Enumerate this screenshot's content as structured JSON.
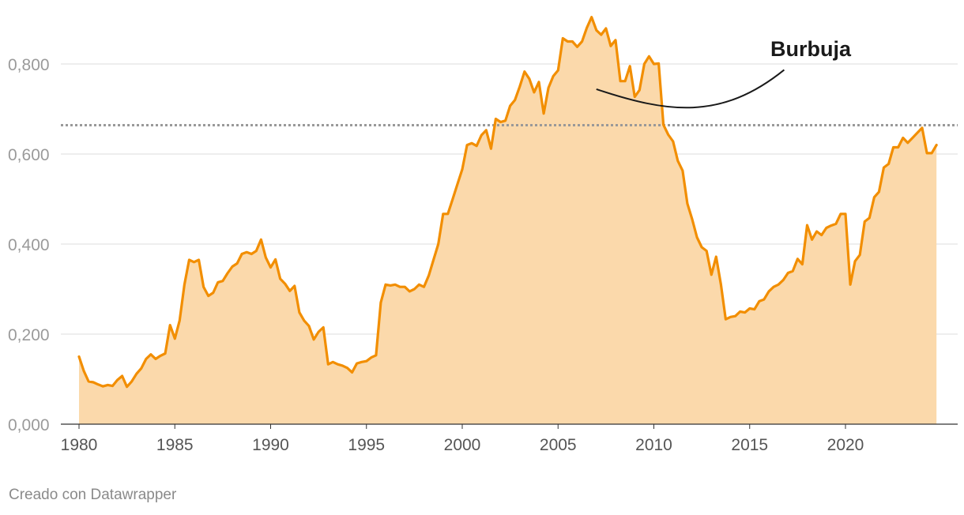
{
  "chart_data": {
    "type": "area",
    "title": "",
    "xlabel": "",
    "ylabel": "",
    "xlim": [
      1979.0,
      2025.9
    ],
    "ylim": [
      0,
      0.9
    ],
    "yticks": [
      0,
      0.2,
      0.4,
      0.6,
      0.8
    ],
    "ytick_labels": [
      "0,000",
      "0,200",
      "0,400",
      "0,600",
      "0,800"
    ],
    "xticks": [
      1980,
      1985,
      1990,
      1995,
      2000,
      2005,
      2010,
      2015,
      2020
    ],
    "xtick_labels": [
      "1980",
      "1985",
      "1990",
      "1995",
      "2000",
      "2005",
      "2010",
      "2015",
      "2020"
    ],
    "grid": true,
    "legend": "none",
    "colors": {
      "line": "#f28e00",
      "fill": "#fbd9ab",
      "reference": "#999999",
      "grid": "#dddddd"
    },
    "reference_line": {
      "y": 0.664,
      "style": "dotted"
    },
    "annotation": {
      "text": "Burbuja",
      "start": [
        2007.0,
        0.744
      ],
      "end": [
        2016.8,
        0.787
      ]
    },
    "series": [
      {
        "name": "",
        "x": [
          1980.0,
          1980.25,
          1980.5,
          1980.75,
          1981.0,
          1981.25,
          1981.5,
          1981.75,
          1982.0,
          1982.25,
          1982.5,
          1982.75,
          1983.0,
          1983.25,
          1983.5,
          1983.75,
          1984.0,
          1984.25,
          1984.5,
          1984.75,
          1985.0,
          1985.25,
          1985.5,
          1985.75,
          1986.0,
          1986.25,
          1986.5,
          1986.75,
          1987.0,
          1987.25,
          1987.5,
          1987.75,
          1988.0,
          1988.25,
          1988.5,
          1988.75,
          1989.0,
          1989.25,
          1989.5,
          1989.75,
          1990.0,
          1990.25,
          1990.5,
          1990.75,
          1991.0,
          1991.25,
          1991.5,
          1991.75,
          1992.0,
          1992.25,
          1992.5,
          1992.75,
          1993.0,
          1993.25,
          1993.5,
          1993.75,
          1994.0,
          1994.25,
          1994.5,
          1994.75,
          1995.0,
          1995.25,
          1995.5,
          1995.75,
          1996.0,
          1996.25,
          1996.5,
          1996.75,
          1997.0,
          1997.25,
          1997.5,
          1997.75,
          1998.0,
          1998.25,
          1998.5,
          1998.75,
          1999.0,
          1999.25,
          1999.5,
          1999.75,
          2000.0,
          2000.25,
          2000.5,
          2000.75,
          2001.0,
          2001.25,
          2001.5,
          2001.75,
          2002.0,
          2002.25,
          2002.5,
          2002.75,
          2003.0,
          2003.25,
          2003.5,
          2003.75,
          2004.0,
          2004.25,
          2004.5,
          2004.75,
          2005.0,
          2005.25,
          2005.5,
          2005.75,
          2006.0,
          2006.25,
          2006.5,
          2006.75,
          2007.0,
          2007.25,
          2007.5,
          2007.75,
          2008.0,
          2008.25,
          2008.5,
          2008.75,
          2009.0,
          2009.25,
          2009.5,
          2009.75,
          2010.0,
          2010.25,
          2010.5,
          2010.75,
          2011.0,
          2011.25,
          2011.5,
          2011.75,
          2012.0,
          2012.25,
          2012.5,
          2012.75,
          2013.0,
          2013.25,
          2013.5,
          2013.75,
          2014.0,
          2014.25,
          2014.5,
          2014.75,
          2015.0,
          2015.25,
          2015.5,
          2015.75,
          2016.0,
          2016.25,
          2016.5,
          2016.75,
          2017.0,
          2017.25,
          2017.5,
          2017.75,
          2018.0,
          2018.25,
          2018.5,
          2018.75,
          2019.0,
          2019.25,
          2019.5,
          2019.75,
          2020.0,
          2020.25,
          2020.5,
          2020.75,
          2021.0,
          2021.25,
          2021.5,
          2021.75,
          2022.0,
          2022.25,
          2022.5,
          2022.75,
          2023.0,
          2023.25,
          2023.5,
          2023.75,
          2024.0,
          2024.25,
          2024.5,
          2024.75
        ],
        "values": [
          0.15,
          0.118,
          0.095,
          0.093,
          0.088,
          0.084,
          0.087,
          0.085,
          0.098,
          0.107,
          0.083,
          0.095,
          0.112,
          0.124,
          0.145,
          0.155,
          0.145,
          0.152,
          0.157,
          0.22,
          0.19,
          0.23,
          0.31,
          0.365,
          0.36,
          0.365,
          0.305,
          0.285,
          0.292,
          0.315,
          0.318,
          0.335,
          0.35,
          0.357,
          0.378,
          0.382,
          0.378,
          0.385,
          0.41,
          0.37,
          0.348,
          0.366,
          0.323,
          0.312,
          0.296,
          0.307,
          0.248,
          0.23,
          0.218,
          0.188,
          0.205,
          0.215,
          0.133,
          0.138,
          0.133,
          0.13,
          0.125,
          0.115,
          0.135,
          0.138,
          0.14,
          0.148,
          0.153,
          0.27,
          0.31,
          0.308,
          0.31,
          0.305,
          0.305,
          0.295,
          0.3,
          0.31,
          0.305,
          0.33,
          0.365,
          0.4,
          0.467,
          0.467,
          0.5,
          0.533,
          0.566,
          0.62,
          0.624,
          0.618,
          0.642,
          0.653,
          0.612,
          0.678,
          0.671,
          0.674,
          0.707,
          0.72,
          0.75,
          0.783,
          0.767,
          0.737,
          0.76,
          0.69,
          0.747,
          0.773,
          0.786,
          0.857,
          0.85,
          0.85,
          0.838,
          0.85,
          0.88,
          0.904,
          0.875,
          0.865,
          0.879,
          0.84,
          0.853,
          0.762,
          0.762,
          0.795,
          0.727,
          0.742,
          0.8,
          0.817,
          0.8,
          0.801,
          0.665,
          0.643,
          0.628,
          0.585,
          0.563,
          0.49,
          0.455,
          0.415,
          0.393,
          0.385,
          0.332,
          0.372,
          0.31,
          0.233,
          0.238,
          0.24,
          0.25,
          0.248,
          0.257,
          0.255,
          0.273,
          0.277,
          0.295,
          0.305,
          0.31,
          0.32,
          0.336,
          0.34,
          0.367,
          0.355,
          0.442,
          0.41,
          0.428,
          0.42,
          0.436,
          0.441,
          0.445,
          0.467,
          0.467,
          0.31,
          0.362,
          0.376,
          0.45,
          0.458,
          0.504,
          0.516,
          0.57,
          0.578,
          0.615,
          0.615,
          0.636,
          0.625,
          0.636,
          0.647,
          0.658,
          0.602,
          0.602,
          0.62
        ]
      }
    ]
  },
  "footer": {
    "credit": "Creado con Datawrapper"
  }
}
